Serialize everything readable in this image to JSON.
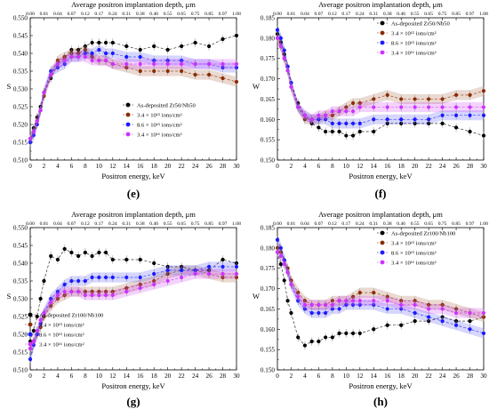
{
  "panel_labels": [
    "(e)",
    "(f)",
    "(g)",
    "(h)"
  ],
  "chart_data": [
    {
      "type": "scatter",
      "panel": "(e)",
      "title": "Average positron implantation depth, μm",
      "xlabel": "Positron energy, keV",
      "ylabel": "S",
      "xlim": [
        0,
        30
      ],
      "ylim": [
        0.51,
        0.55
      ],
      "x_ticks": [
        0,
        2,
        4,
        6,
        8,
        10,
        12,
        14,
        16,
        18,
        20,
        22,
        24,
        26,
        28,
        30
      ],
      "y_ticks": [
        "0.510",
        "0.515",
        "0.520",
        "0.525",
        "0.530",
        "0.535",
        "0.540",
        "0.545",
        "0.550"
      ],
      "top_ticks": [
        "0.00",
        "0.01",
        "0.04",
        "0.07",
        "0.12",
        "0.17",
        "0.24",
        "0.31",
        "0.38",
        "0.46",
        "0.55",
        "0.65",
        "0.75",
        "0.85",
        "0.97",
        "1.08"
      ],
      "legend_position": "lower-right",
      "x": [
        0,
        0.5,
        1,
        1.5,
        2,
        3,
        4,
        5,
        6,
        7,
        8,
        9,
        10,
        11,
        12,
        14,
        16,
        18,
        20,
        22,
        24,
        26,
        28,
        30
      ],
      "series": [
        {
          "name": "As-deposited Zr50/Nb50",
          "color": "#000000",
          "values": [
            0.515,
            0.519,
            0.522,
            0.525,
            0.529,
            0.533,
            0.537,
            0.539,
            0.541,
            0.541,
            0.542,
            0.543,
            0.543,
            0.543,
            0.543,
            0.542,
            0.541,
            0.542,
            0.541,
            0.542,
            0.543,
            0.542,
            0.544,
            0.545
          ]
        },
        {
          "name": "3.4 × 10¹⁵ ions/cm²",
          "color": "#8b2c00",
          "values": [
            0.516,
            0.518,
            0.521,
            0.524,
            0.528,
            0.534,
            0.538,
            0.539,
            0.54,
            0.54,
            0.541,
            0.539,
            0.538,
            0.538,
            0.537,
            0.536,
            0.535,
            0.535,
            0.535,
            0.535,
            0.534,
            0.534,
            0.533,
            0.532
          ]
        },
        {
          "name": "8.6 × 10¹⁵ ions/cm²",
          "color": "#1a1aff",
          "values": [
            0.515,
            0.517,
            0.52,
            0.524,
            0.529,
            0.535,
            0.536,
            0.537,
            0.539,
            0.539,
            0.54,
            0.54,
            0.541,
            0.54,
            0.54,
            0.539,
            0.539,
            0.538,
            0.538,
            0.538,
            0.537,
            0.537,
            0.536,
            0.536
          ]
        },
        {
          "name": "3.4 × 10¹⁶ ions/cm²",
          "color": "#cc33ff",
          "values": [
            0.516,
            0.518,
            0.521,
            0.524,
            0.529,
            0.534,
            0.537,
            0.538,
            0.539,
            0.539,
            0.539,
            0.538,
            0.538,
            0.538,
            0.537,
            0.537,
            0.537,
            0.537,
            0.537,
            0.537,
            0.537,
            0.537,
            0.537,
            0.537
          ]
        }
      ]
    },
    {
      "type": "scatter",
      "panel": "(f)",
      "title": "Average positron implantation depth, μm",
      "xlabel": "Positron energy, keV",
      "ylabel": "W",
      "xlim": [
        0,
        30
      ],
      "ylim": [
        0.15,
        0.185
      ],
      "x_ticks": [
        0,
        2,
        4,
        6,
        8,
        10,
        12,
        14,
        16,
        18,
        20,
        22,
        24,
        26,
        28,
        30
      ],
      "y_ticks": [
        "0.150",
        "0.155",
        "0.160",
        "0.165",
        "0.170",
        "0.175",
        "0.180",
        "0.185"
      ],
      "top_ticks": [
        "0.00",
        "0.01",
        "0.04",
        "0.07",
        "0.12",
        "0.17",
        "0.24",
        "0.31",
        "0.38",
        "0.46",
        "0.55",
        "0.65",
        "0.75",
        "0.85",
        "0.97",
        "1.08"
      ],
      "legend_position": "upper-right",
      "x": [
        0,
        0.5,
        1,
        1.5,
        2,
        3,
        4,
        5,
        6,
        7,
        8,
        9,
        10,
        11,
        12,
        14,
        16,
        18,
        20,
        22,
        24,
        26,
        28,
        30
      ],
      "series": [
        {
          "name": "As-deposited Zr50/Nb50",
          "color": "#000000",
          "values": [
            0.181,
            0.179,
            0.176,
            0.173,
            0.169,
            0.164,
            0.161,
            0.159,
            0.158,
            0.157,
            0.157,
            0.157,
            0.156,
            0.156,
            0.157,
            0.157,
            0.159,
            0.159,
            0.159,
            0.159,
            0.159,
            0.158,
            0.157,
            0.156
          ]
        },
        {
          "name": "3.4 × 10¹⁵ ions/cm²",
          "color": "#8b2c00",
          "values": [
            0.18,
            0.178,
            0.175,
            0.172,
            0.168,
            0.163,
            0.16,
            0.16,
            0.16,
            0.161,
            0.161,
            0.162,
            0.163,
            0.164,
            0.164,
            0.165,
            0.166,
            0.165,
            0.165,
            0.165,
            0.165,
            0.166,
            0.166,
            0.167
          ]
        },
        {
          "name": "8.6 × 10¹⁵ ions/cm²",
          "color": "#1a1aff",
          "values": [
            0.182,
            0.18,
            0.177,
            0.173,
            0.169,
            0.163,
            0.161,
            0.16,
            0.16,
            0.16,
            0.159,
            0.159,
            0.159,
            0.159,
            0.159,
            0.16,
            0.16,
            0.16,
            0.16,
            0.16,
            0.161,
            0.161,
            0.161,
            0.161
          ]
        },
        {
          "name": "3.4 × 10¹⁶ ions/cm²",
          "color": "#cc33ff",
          "values": [
            0.18,
            0.178,
            0.175,
            0.172,
            0.168,
            0.163,
            0.161,
            0.16,
            0.161,
            0.161,
            0.162,
            0.162,
            0.162,
            0.162,
            0.163,
            0.163,
            0.163,
            0.163,
            0.163,
            0.163,
            0.163,
            0.163,
            0.163,
            0.163
          ]
        }
      ]
    },
    {
      "type": "scatter",
      "panel": "(g)",
      "title": "Average positron implantation depth, μm",
      "xlabel": "Positron energy, keV",
      "ylabel": "S",
      "xlim": [
        0,
        30
      ],
      "ylim": [
        0.51,
        0.55
      ],
      "x_ticks": [
        0,
        2,
        4,
        6,
        8,
        10,
        12,
        14,
        16,
        18,
        20,
        22,
        24,
        26,
        28,
        30
      ],
      "y_ticks": [
        "0.510",
        "0.515",
        "0.520",
        "0.525",
        "0.530",
        "0.535",
        "0.540",
        "0.545",
        "0.550"
      ],
      "top_ticks": [
        "0.00",
        "0.01",
        "0.04",
        "0.07",
        "0.12",
        "0.17",
        "0.24",
        "0.31",
        "0.38",
        "0.46",
        "0.55",
        "0.65",
        "0.75",
        "0.85",
        "0.97",
        "1.08"
      ],
      "legend_position": "lower-left",
      "x": [
        0,
        0.5,
        1,
        1.5,
        2,
        3,
        4,
        5,
        6,
        7,
        8,
        9,
        10,
        11,
        12,
        14,
        16,
        18,
        20,
        22,
        24,
        26,
        28,
        30
      ],
      "series": [
        {
          "name": "As-deposited Zr100/Nb100",
          "color": "#000000",
          "values": [
            0.518,
            0.521,
            0.525,
            0.53,
            0.535,
            0.542,
            0.541,
            0.544,
            0.543,
            0.542,
            0.543,
            0.542,
            0.543,
            0.543,
            0.541,
            0.541,
            0.541,
            0.54,
            0.539,
            0.539,
            0.538,
            0.538,
            0.541,
            0.54
          ]
        },
        {
          "name": "3.4 × 10¹⁵ ions/cm²",
          "color": "#8b2c00",
          "values": [
            0.516,
            0.518,
            0.52,
            0.522,
            0.525,
            0.528,
            0.53,
            0.531,
            0.532,
            0.532,
            0.532,
            0.532,
            0.532,
            0.532,
            0.532,
            0.533,
            0.534,
            0.535,
            0.537,
            0.538,
            0.538,
            0.537,
            0.536,
            0.536
          ]
        },
        {
          "name": "8.6 × 10¹⁵ ions/cm²",
          "color": "#1a1aff",
          "values": [
            0.513,
            0.517,
            0.52,
            0.523,
            0.526,
            0.53,
            0.532,
            0.534,
            0.535,
            0.535,
            0.535,
            0.536,
            0.536,
            0.536,
            0.536,
            0.536,
            0.536,
            0.537,
            0.538,
            0.538,
            0.538,
            0.539,
            0.539,
            0.539
          ]
        },
        {
          "name": "3.4 × 10¹⁶ ions/cm²",
          "color": "#cc33ff",
          "values": [
            0.516,
            0.518,
            0.521,
            0.524,
            0.526,
            0.529,
            0.531,
            0.532,
            0.532,
            0.532,
            0.531,
            0.531,
            0.531,
            0.531,
            0.531,
            0.532,
            0.533,
            0.534,
            0.535,
            0.536,
            0.537,
            0.537,
            0.537,
            0.537
          ]
        }
      ]
    },
    {
      "type": "scatter",
      "panel": "(h)",
      "title": "Average positron implantation depth, μm",
      "xlabel": "Positron energy, keV",
      "ylabel": "W",
      "xlim": [
        0,
        30
      ],
      "ylim": [
        0.15,
        0.185
      ],
      "x_ticks": [
        0,
        2,
        4,
        6,
        8,
        10,
        12,
        14,
        16,
        18,
        20,
        22,
        24,
        26,
        28,
        30
      ],
      "y_ticks": [
        "0.150",
        "0.155",
        "0.160",
        "0.165",
        "0.170",
        "0.175",
        "0.180",
        "0.185"
      ],
      "top_ticks": [
        "0.00",
        "0.01",
        "0.04",
        "0.07",
        "0.12",
        "0.17",
        "0.24",
        "0.31",
        "0.38",
        "0.46",
        "0.55",
        "0.65",
        "0.75",
        "0.85",
        "0.97",
        "1.08"
      ],
      "legend_position": "upper-right",
      "x": [
        0,
        0.5,
        1,
        1.5,
        2,
        3,
        4,
        5,
        6,
        7,
        8,
        9,
        10,
        11,
        12,
        14,
        16,
        18,
        20,
        22,
        24,
        26,
        28,
        30
      ],
      "series": [
        {
          "name": "As-deposited Zr100/Nb100",
          "color": "#000000",
          "values": [
            0.179,
            0.176,
            0.172,
            0.167,
            0.164,
            0.158,
            0.156,
            0.157,
            0.157,
            0.158,
            0.158,
            0.159,
            0.159,
            0.159,
            0.159,
            0.16,
            0.161,
            0.161,
            0.162,
            0.162,
            0.163,
            0.162,
            0.162,
            0.163
          ]
        },
        {
          "name": "3.4 × 10¹⁵ ions/cm²",
          "color": "#8b2c00",
          "values": [
            0.18,
            0.179,
            0.177,
            0.175,
            0.172,
            0.169,
            0.167,
            0.166,
            0.166,
            0.166,
            0.167,
            0.167,
            0.167,
            0.168,
            0.169,
            0.169,
            0.168,
            0.167,
            0.167,
            0.166,
            0.166,
            0.165,
            0.164,
            0.163
          ]
        },
        {
          "name": "8.6 × 10¹⁵ ions/cm²",
          "color": "#1a1aff",
          "values": [
            0.182,
            0.18,
            0.177,
            0.174,
            0.171,
            0.167,
            0.165,
            0.164,
            0.164,
            0.164,
            0.165,
            0.165,
            0.166,
            0.166,
            0.166,
            0.166,
            0.165,
            0.165,
            0.164,
            0.163,
            0.162,
            0.161,
            0.16,
            0.159
          ]
        },
        {
          "name": "3.4 × 10¹⁶ ions/cm²",
          "color": "#cc33ff",
          "values": [
            0.179,
            0.178,
            0.176,
            0.174,
            0.171,
            0.168,
            0.166,
            0.166,
            0.166,
            0.166,
            0.166,
            0.167,
            0.167,
            0.167,
            0.167,
            0.167,
            0.167,
            0.166,
            0.166,
            0.165,
            0.165,
            0.164,
            0.164,
            0.164
          ]
        }
      ]
    }
  ]
}
